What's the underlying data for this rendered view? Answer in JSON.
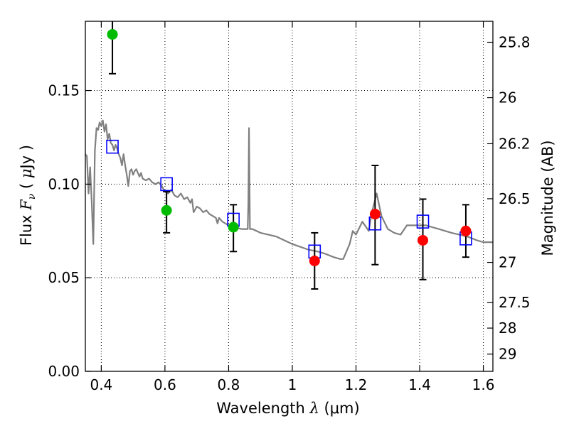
{
  "chart_data": {
    "type": "scatter",
    "xlabel": "Wavelength  λ (μm)",
    "xlabel_parts": {
      "pre": "Wavelength  ",
      "var": "λ",
      "unit": " (μm)"
    },
    "ylabel": "Flux  Fν  ( μJy )",
    "ylabel_parts": {
      "pre": "Flux  ",
      "var": "F",
      "sub": "ν",
      "open": "  ( ",
      "mu": "μ",
      "unit": "Jy )"
    },
    "y2label": "Magnitude (AB)",
    "xlim": [
      0.35,
      1.63
    ],
    "ylim": [
      0.0,
      0.187
    ],
    "xticks": [
      0.4,
      0.6,
      0.8,
      1.0,
      1.2,
      1.4,
      1.6
    ],
    "xtick_labels": [
      "0.4",
      "0.6",
      "0.8",
      "1",
      "1.2",
      "1.4",
      "1.6"
    ],
    "yticks": [
      0.0,
      0.05,
      0.1,
      0.15
    ],
    "ytick_labels": [
      "0.00",
      "0.05",
      "0.10",
      "0.15"
    ],
    "magnitude_ticks": [
      {
        "label": "25.8",
        "flux": 0.1758
      },
      {
        "label": "26",
        "flux": 0.1462
      },
      {
        "label": "26.2",
        "flux": 0.1216
      },
      {
        "label": "26.5",
        "flux": 0.0922
      },
      {
        "label": "27",
        "flux": 0.0582
      },
      {
        "label": "27.5",
        "flux": 0.0367
      },
      {
        "label": "28",
        "flux": 0.0231
      },
      {
        "label": "29",
        "flux": 0.0092
      }
    ],
    "grid": true,
    "grid_style": "dotted",
    "colors": {
      "model_line": "#808080",
      "model_points": "#0000ff",
      "green_points": "#00bb00",
      "red_points": "#ff0000",
      "errorbar": "#000000"
    },
    "model_spectrum": [
      [
        0.35,
        0.116
      ],
      [
        0.355,
        0.115
      ],
      [
        0.36,
        0.095
      ],
      [
        0.365,
        0.109
      ],
      [
        0.37,
        0.09
      ],
      [
        0.375,
        0.068
      ],
      [
        0.38,
        0.118
      ],
      [
        0.385,
        0.13
      ],
      [
        0.39,
        0.129
      ],
      [
        0.395,
        0.133
      ],
      [
        0.4,
        0.131
      ],
      [
        0.405,
        0.134
      ],
      [
        0.41,
        0.128
      ],
      [
        0.415,
        0.132
      ],
      [
        0.42,
        0.124
      ],
      [
        0.425,
        0.127
      ],
      [
        0.43,
        0.122
      ],
      [
        0.435,
        0.121
      ],
      [
        0.44,
        0.118
      ],
      [
        0.445,
        0.121
      ],
      [
        0.45,
        0.119
      ],
      [
        0.455,
        0.116
      ],
      [
        0.46,
        0.114
      ],
      [
        0.465,
        0.11
      ],
      [
        0.47,
        0.116
      ],
      [
        0.475,
        0.11
      ],
      [
        0.48,
        0.105
      ],
      [
        0.485,
        0.099
      ],
      [
        0.49,
        0.107
      ],
      [
        0.495,
        0.108
      ],
      [
        0.5,
        0.105
      ],
      [
        0.505,
        0.107
      ],
      [
        0.51,
        0.108
      ],
      [
        0.52,
        0.104
      ],
      [
        0.525,
        0.106
      ],
      [
        0.53,
        0.103
      ],
      [
        0.54,
        0.102
      ],
      [
        0.55,
        0.103
      ],
      [
        0.56,
        0.101
      ],
      [
        0.57,
        0.1
      ],
      [
        0.58,
        0.101
      ],
      [
        0.59,
        0.099
      ],
      [
        0.6,
        0.096
      ],
      [
        0.61,
        0.095
      ],
      [
        0.62,
        0.097
      ],
      [
        0.63,
        0.094
      ],
      [
        0.64,
        0.093
      ],
      [
        0.65,
        0.095
      ],
      [
        0.66,
        0.092
      ],
      [
        0.67,
        0.093
      ],
      [
        0.68,
        0.09
      ],
      [
        0.685,
        0.092
      ],
      [
        0.69,
        0.085
      ],
      [
        0.7,
        0.088
      ],
      [
        0.71,
        0.087
      ],
      [
        0.72,
        0.085
      ],
      [
        0.73,
        0.086
      ],
      [
        0.74,
        0.084
      ],
      [
        0.75,
        0.083
      ],
      [
        0.76,
        0.082
      ],
      [
        0.765,
        0.079
      ],
      [
        0.77,
        0.082
      ],
      [
        0.78,
        0.08
      ],
      [
        0.8,
        0.078
      ],
      [
        0.82,
        0.077
      ],
      [
        0.84,
        0.076
      ],
      [
        0.855,
        0.076
      ],
      [
        0.86,
        0.076
      ],
      [
        0.862,
        0.09
      ],
      [
        0.864,
        0.13
      ],
      [
        0.867,
        0.076
      ],
      [
        0.875,
        0.076
      ],
      [
        0.9,
        0.074
      ],
      [
        0.95,
        0.072
      ],
      [
        1.0,
        0.068
      ],
      [
        1.05,
        0.065
      ],
      [
        1.08,
        0.064
      ],
      [
        1.1,
        0.063
      ],
      [
        1.13,
        0.061
      ],
      [
        1.15,
        0.06
      ],
      [
        1.16,
        0.06
      ],
      [
        1.18,
        0.068
      ],
      [
        1.19,
        0.075
      ],
      [
        1.2,
        0.073
      ],
      [
        1.22,
        0.08
      ],
      [
        1.24,
        0.075
      ],
      [
        1.25,
        0.085
      ],
      [
        1.265,
        0.095
      ],
      [
        1.28,
        0.083
      ],
      [
        1.3,
        0.076
      ],
      [
        1.32,
        0.074
      ],
      [
        1.34,
        0.073
      ],
      [
        1.36,
        0.078
      ],
      [
        1.38,
        0.078
      ],
      [
        1.4,
        0.078
      ],
      [
        1.42,
        0.078
      ],
      [
        1.44,
        0.077
      ],
      [
        1.46,
        0.076
      ],
      [
        1.5,
        0.074
      ],
      [
        1.55,
        0.072
      ],
      [
        1.58,
        0.07
      ],
      [
        1.6,
        0.069
      ],
      [
        1.63,
        0.069
      ]
    ],
    "model_points": [
      {
        "x": 0.435,
        "y": 0.12
      },
      {
        "x": 0.605,
        "y": 0.1
      },
      {
        "x": 0.815,
        "y": 0.081
      },
      {
        "x": 1.07,
        "y": 0.064
      },
      {
        "x": 1.26,
        "y": 0.079
      },
      {
        "x": 1.41,
        "y": 0.08
      },
      {
        "x": 1.545,
        "y": 0.071
      }
    ],
    "observed_green": [
      {
        "x": 0.435,
        "y": 0.18,
        "lo": 0.159,
        "hi": 0.187
      },
      {
        "x": 0.605,
        "y": 0.086,
        "lo": 0.074,
        "hi": 0.096
      },
      {
        "x": 0.815,
        "y": 0.077,
        "lo": 0.064,
        "hi": 0.089
      }
    ],
    "observed_red": [
      {
        "x": 1.07,
        "y": 0.059,
        "lo": 0.044,
        "hi": 0.074
      },
      {
        "x": 1.26,
        "y": 0.084,
        "lo": 0.057,
        "hi": 0.11
      },
      {
        "x": 1.41,
        "y": 0.07,
        "lo": 0.049,
        "hi": 0.092
      },
      {
        "x": 1.545,
        "y": 0.075,
        "lo": 0.061,
        "hi": 0.089
      }
    ]
  }
}
